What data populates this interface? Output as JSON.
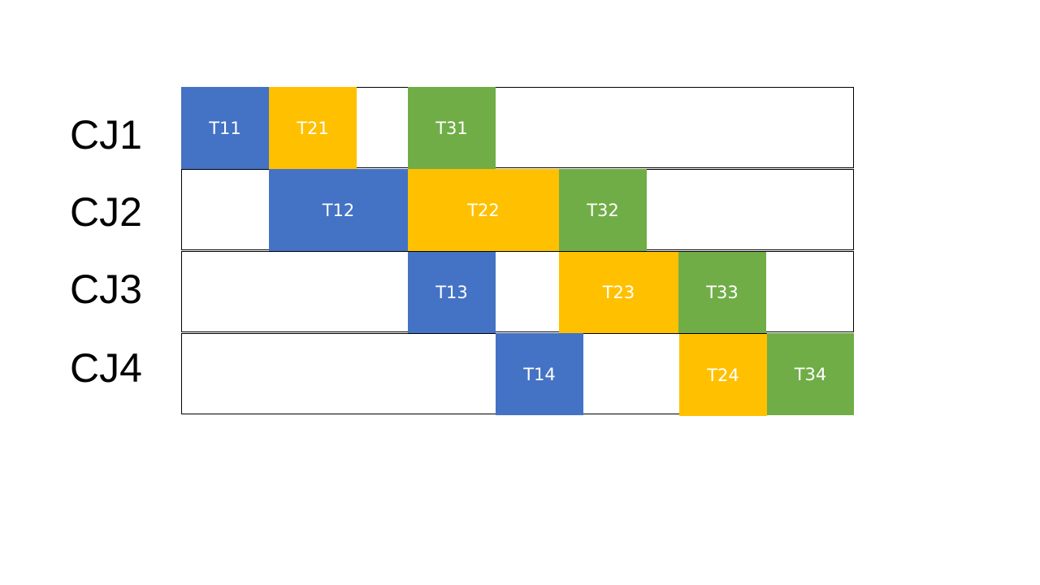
{
  "colors": {
    "task_blue": "#4472C4",
    "task_yellow": "#FFC000",
    "task_green": "#70AD47"
  },
  "rows": [
    {
      "label": "CJ1"
    },
    {
      "label": "CJ2"
    },
    {
      "label": "CJ3"
    },
    {
      "label": "CJ4"
    }
  ],
  "tasks": [
    {
      "label": "T11",
      "color": "#4472C4"
    },
    {
      "label": "T21",
      "color": "#FFC000"
    },
    {
      "label": "T31",
      "color": "#70AD47"
    },
    {
      "label": "T12",
      "color": "#4472C4"
    },
    {
      "label": "T22",
      "color": "#FFC000"
    },
    {
      "label": "T32",
      "color": "#70AD47"
    },
    {
      "label": "T13",
      "color": "#4472C4"
    },
    {
      "label": "T23",
      "color": "#FFC000"
    },
    {
      "label": "T33",
      "color": "#70AD47"
    },
    {
      "label": "T14",
      "color": "#4472C4"
    },
    {
      "label": "T24",
      "color": "#FFC000"
    },
    {
      "label": "T34",
      "color": "#70AD47"
    }
  ]
}
